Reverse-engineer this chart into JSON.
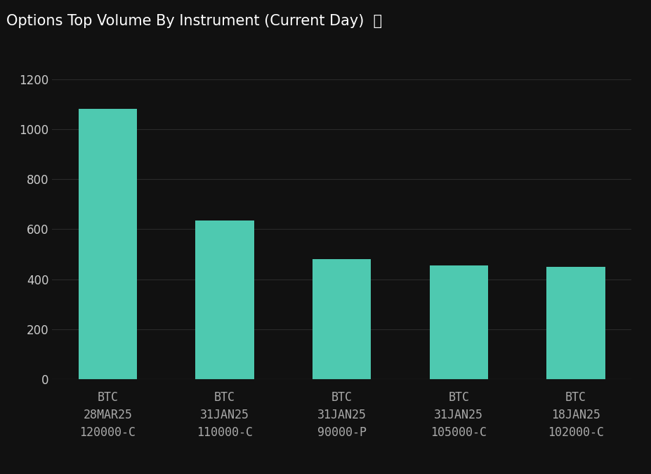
{
  "title": "Options Top Volume By Instrument (Current Day)  ⓘ",
  "categories": [
    "BTC\n28MAR25\n120000-C",
    "BTC\n31JAN25\n110000-C",
    "BTC\n31JAN25\n90000-P",
    "BTC\n31JAN25\n105000-C",
    "BTC\n18JAN25\n102000-C"
  ],
  "values": [
    1080,
    635,
    480,
    455,
    448
  ],
  "bar_color": "#4EC9B0",
  "background_color": "#111111",
  "text_color": "#ffffff",
  "ytick_color": "#cccccc",
  "xtick_color": "#aaaaaa",
  "grid_color": "#2a2a2a",
  "yticks": [
    0,
    200,
    400,
    600,
    800,
    1000,
    1200
  ],
  "ylim": [
    0,
    1270
  ],
  "title_fontsize": 15,
  "tick_fontsize": 12,
  "bar_width": 0.5
}
